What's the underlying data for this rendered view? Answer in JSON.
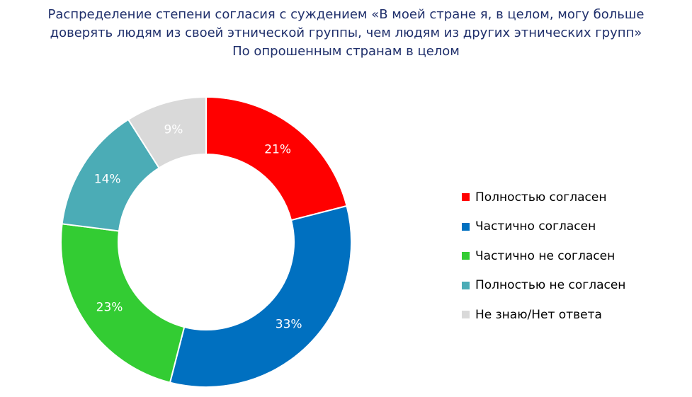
{
  "chart_data": {
    "type": "pie",
    "variant": "donut",
    "title_lines": [
      "Распределение степени согласия с суждением «В моей стране я, в целом, могу больше",
      "доверять людям из своей этнической группы, чем людям из других этнических групп»",
      "По опрошенным странам в целом"
    ],
    "legend_position": "right",
    "slices": [
      {
        "name": "Полностью согласен",
        "value": 21,
        "label": "21%",
        "color": "#ff0000"
      },
      {
        "name": "Частично согласен",
        "value": 33,
        "label": "33%",
        "color": "#0070c0"
      },
      {
        "name": "Частично не согласен",
        "value": 23,
        "label": "23%",
        "color": "#33cc33"
      },
      {
        "name": "Полностью не согласен",
        "value": 14,
        "label": "14%",
        "color": "#4bacb6"
      },
      {
        "name": "Не знаю/Нет ответа",
        "value": 9,
        "label": "9%",
        "color": "#d9d9d9"
      }
    ]
  }
}
